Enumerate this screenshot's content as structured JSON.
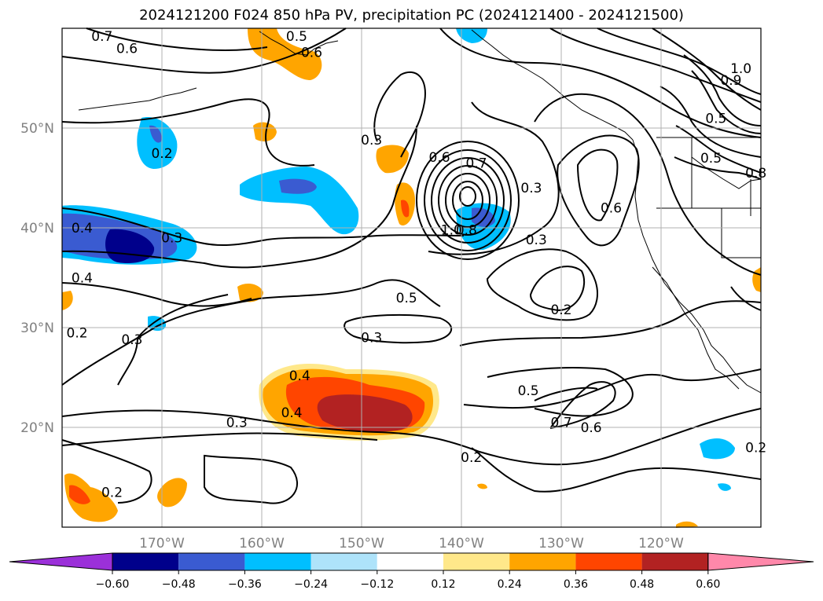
{
  "title": "2024121200 F024 850 hPa PV, precipitation PC (2024121400 - 2024121500)",
  "map": {
    "lon_range": [
      -180,
      -110
    ],
    "lat_range": [
      10,
      60
    ],
    "lat_ticks": [
      {
        "lat": 50,
        "label": "50°N"
      },
      {
        "lat": 40,
        "label": "40°N"
      },
      {
        "lat": 30,
        "label": "30°N"
      },
      {
        "lat": 20,
        "label": "20°N"
      }
    ],
    "lon_ticks": [
      {
        "lon": -170,
        "label": "170°W"
      },
      {
        "lon": -160,
        "label": "160°W"
      },
      {
        "lon": -150,
        "label": "150°W"
      },
      {
        "lon": -140,
        "label": "140°W"
      },
      {
        "lon": -130,
        "label": "130°W"
      },
      {
        "lon": -120,
        "label": "120°W"
      }
    ],
    "tick_label_color": "#808080",
    "grid_color": "#b0b0b0",
    "contour_labels": [
      {
        "text": "0.7",
        "lon": -176.0,
        "lat": 59.2
      },
      {
        "text": "0.5",
        "lon": -156.5,
        "lat": 59.2
      },
      {
        "text": "0.6",
        "lon": -173.5,
        "lat": 58.0
      },
      {
        "text": "0.6",
        "lon": -155.0,
        "lat": 57.6
      },
      {
        "text": "0.2",
        "lon": -170.0,
        "lat": 47.5
      },
      {
        "text": "0.3",
        "lon": -149.0,
        "lat": 48.8
      },
      {
        "text": "0.6",
        "lon": -142.2,
        "lat": 47.1
      },
      {
        "text": "0.7",
        "lon": -138.5,
        "lat": 46.5
      },
      {
        "text": "0.3",
        "lon": -133.0,
        "lat": 44.0
      },
      {
        "text": "0.6",
        "lon": -125.0,
        "lat": 42.0
      },
      {
        "text": "1.0",
        "lon": -141.0,
        "lat": 39.8
      },
      {
        "text": "0.8",
        "lon": -139.5,
        "lat": 39.8
      },
      {
        "text": "0.3",
        "lon": -132.5,
        "lat": 38.8
      },
      {
        "text": "0.4",
        "lon": -178.0,
        "lat": 40.0
      },
      {
        "text": "0.3",
        "lon": -169.0,
        "lat": 39.0
      },
      {
        "text": "0.4",
        "lon": -178.0,
        "lat": 35.0
      },
      {
        "text": "0.5",
        "lon": -145.5,
        "lat": 33.0
      },
      {
        "text": "0.2",
        "lon": -130.0,
        "lat": 31.8
      },
      {
        "text": "0.2",
        "lon": -178.5,
        "lat": 29.5
      },
      {
        "text": "0.3",
        "lon": -173.0,
        "lat": 28.8
      },
      {
        "text": "0.3",
        "lon": -149.0,
        "lat": 29.0
      },
      {
        "text": "0.4",
        "lon": -156.2,
        "lat": 25.2
      },
      {
        "text": "0.4",
        "lon": -157.0,
        "lat": 21.5
      },
      {
        "text": "0.3",
        "lon": -162.5,
        "lat": 20.5
      },
      {
        "text": "0.5",
        "lon": -133.3,
        "lat": 23.7
      },
      {
        "text": "0.7",
        "lon": -130.0,
        "lat": 20.5
      },
      {
        "text": "0.6",
        "lon": -127.0,
        "lat": 20.0
      },
      {
        "text": "0.2",
        "lon": -139.0,
        "lat": 17.0
      },
      {
        "text": "0.2",
        "lon": -175.0,
        "lat": 13.5
      },
      {
        "text": "0.2",
        "lon": -110.5,
        "lat": 18.0
      },
      {
        "text": "0.5",
        "lon": -114.5,
        "lat": 51.0
      },
      {
        "text": "0.5",
        "lon": -115.0,
        "lat": 47.0
      },
      {
        "text": "1.0",
        "lon": -112.0,
        "lat": 56.0
      },
      {
        "text": "0.9",
        "lon": -113.0,
        "lat": 54.8
      },
      {
        "text": "0.8",
        "lon": -110.5,
        "lat": 45.5
      }
    ]
  },
  "colorbar": {
    "colors": [
      "#9b30d9",
      "#00008b",
      "#3a5bd1",
      "#00bfff",
      "#aee3fa",
      "#ffffff",
      "#ffe88a",
      "#ffa500",
      "#ff4500",
      "#b22222",
      "#ff88aa"
    ],
    "tick_labels": [
      "−0.60",
      "−0.48",
      "−0.36",
      "−0.24",
      "−0.12",
      "0.12",
      "0.24",
      "0.36",
      "0.48",
      "0.60"
    ]
  }
}
